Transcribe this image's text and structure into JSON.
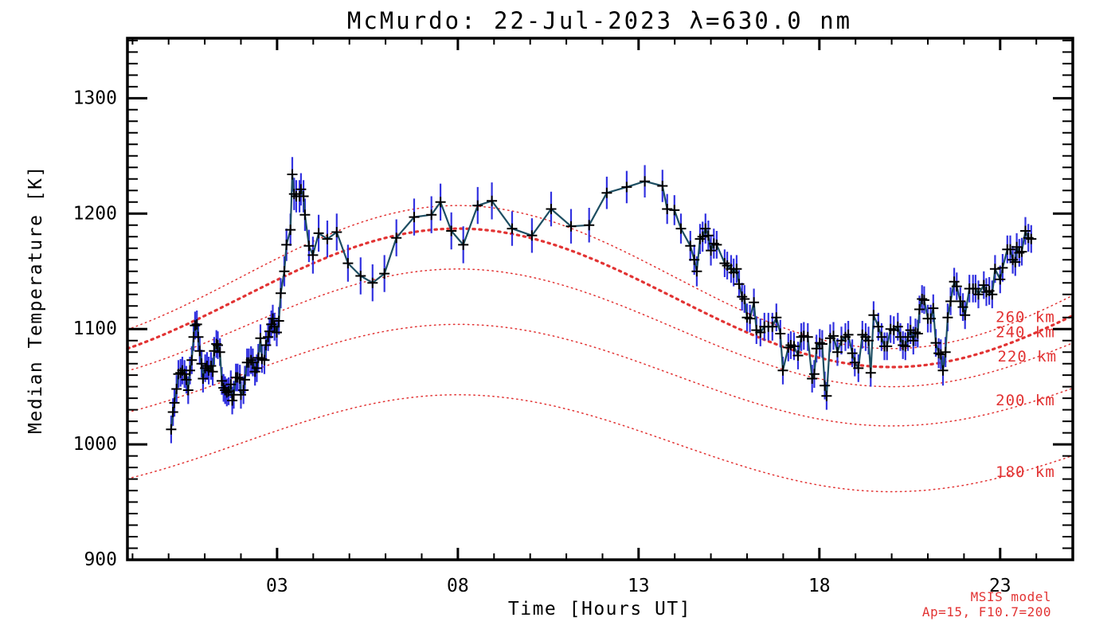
{
  "title": "McMurdo: 22-Jul-2023 λ=630.0 nm",
  "chart_data": {
    "type": "line",
    "title": "McMurdo: 22-Jul-2023 λ=630.0 nm",
    "xlabel": "Time [Hours UT]",
    "ylabel": "Median Temperature [K]",
    "xlim": [
      -1.14,
      25.01
    ],
    "ylim": [
      900,
      1352
    ],
    "grid": false,
    "x_major_ticks": [
      3,
      8,
      13,
      18,
      23
    ],
    "x_major_tick_labels": [
      "03",
      "08",
      "13",
      "18",
      "23"
    ],
    "x_minor_step": 1,
    "y_major_ticks": [
      900,
      1000,
      1100,
      1200,
      1300
    ],
    "y_major_tick_labels": [
      "900",
      "1000",
      "1100",
      "1200",
      "1300"
    ],
    "y_minor_step": 10,
    "colors": {
      "axis": "#000000",
      "model_red": "#e23333",
      "error_bar_blue": "#3232e0",
      "data_line_teal": "#1d4e62",
      "marker_black": "#000000"
    },
    "series": {
      "name": "median temperature with error bars",
      "marker": "plus",
      "line_color": "#1d4e62",
      "marker_color": "#000000",
      "error_bar_color": "#3232e0",
      "points_format": [
        "hours_ut",
        "temperature_k",
        "error_k"
      ],
      "points": [
        [
          0.07,
          1013,
          12
        ],
        [
          0.12,
          1028,
          12
        ],
        [
          0.16,
          1036,
          12
        ],
        [
          0.22,
          1048,
          12
        ],
        [
          0.27,
          1061,
          12
        ],
        [
          0.33,
          1062,
          12
        ],
        [
          0.38,
          1064,
          12
        ],
        [
          0.44,
          1061,
          12
        ],
        [
          0.49,
          1056,
          12
        ],
        [
          0.54,
          1047,
          12
        ],
        [
          0.59,
          1064,
          12
        ],
        [
          0.64,
          1073,
          12
        ],
        [
          0.69,
          1093,
          12
        ],
        [
          0.73,
          1103,
          12
        ],
        [
          0.78,
          1104,
          12
        ],
        [
          0.82,
          1093,
          12
        ],
        [
          0.86,
          1081,
          12
        ],
        [
          0.91,
          1070,
          12
        ],
        [
          0.95,
          1057,
          12
        ],
        [
          1.01,
          1066,
          12
        ],
        [
          1.06,
          1068,
          12
        ],
        [
          1.11,
          1064,
          12
        ],
        [
          1.17,
          1068,
          12
        ],
        [
          1.22,
          1063,
          12
        ],
        [
          1.26,
          1081,
          12
        ],
        [
          1.32,
          1087,
          12
        ],
        [
          1.36,
          1086,
          12
        ],
        [
          1.42,
          1080,
          12
        ],
        [
          1.47,
          1055,
          12
        ],
        [
          1.52,
          1049,
          12
        ],
        [
          1.56,
          1047,
          12
        ],
        [
          1.61,
          1045,
          12
        ],
        [
          1.66,
          1046,
          12
        ],
        [
          1.72,
          1052,
          12
        ],
        [
          1.76,
          1038,
          12
        ],
        [
          1.8,
          1043,
          12
        ],
        [
          1.86,
          1058,
          12
        ],
        [
          1.91,
          1058,
          12
        ],
        [
          1.97,
          1057,
          12
        ],
        [
          2.0,
          1043,
          12
        ],
        [
          2.07,
          1047,
          12
        ],
        [
          2.11,
          1056,
          12
        ],
        [
          2.17,
          1071,
          12
        ],
        [
          2.22,
          1071,
          12
        ],
        [
          2.28,
          1073,
          12
        ],
        [
          2.33,
          1071,
          12
        ],
        [
          2.39,
          1063,
          12
        ],
        [
          2.44,
          1066,
          12
        ],
        [
          2.48,
          1075,
          12
        ],
        [
          2.54,
          1092,
          12
        ],
        [
          2.58,
          1074,
          12
        ],
        [
          2.65,
          1073,
          12
        ],
        [
          2.69,
          1086,
          12
        ],
        [
          2.75,
          1093,
          12
        ],
        [
          2.79,
          1098,
          12
        ],
        [
          2.84,
          1104,
          12
        ],
        [
          2.88,
          1109,
          12
        ],
        [
          2.93,
          1102,
          12
        ],
        [
          2.99,
          1097,
          12
        ],
        [
          3.05,
          1107,
          12
        ],
        [
          3.1,
          1131,
          13
        ],
        [
          3.2,
          1150,
          13
        ],
        [
          3.26,
          1173,
          14
        ],
        [
          3.37,
          1186,
          14
        ],
        [
          3.42,
          1234,
          15
        ],
        [
          3.47,
          1217,
          14
        ],
        [
          3.53,
          1215,
          14
        ],
        [
          3.62,
          1215,
          14
        ],
        [
          3.66,
          1221,
          14
        ],
        [
          3.73,
          1215,
          14
        ],
        [
          3.77,
          1199,
          14
        ],
        [
          3.88,
          1172,
          14
        ],
        [
          3.99,
          1164,
          16
        ],
        [
          4.15,
          1183,
          16
        ],
        [
          4.39,
          1178,
          16
        ],
        [
          4.65,
          1184,
          16
        ],
        [
          4.96,
          1157,
          16
        ],
        [
          5.31,
          1146,
          16
        ],
        [
          5.64,
          1140,
          16
        ],
        [
          5.97,
          1148,
          16
        ],
        [
          6.3,
          1179,
          16
        ],
        [
          6.79,
          1197,
          16
        ],
        [
          7.27,
          1199,
          16
        ],
        [
          7.52,
          1210,
          16
        ],
        [
          7.82,
          1185,
          16
        ],
        [
          8.15,
          1173,
          16
        ],
        [
          8.55,
          1207,
          16
        ],
        [
          8.94,
          1211,
          16
        ],
        [
          9.5,
          1187,
          15
        ],
        [
          10.05,
          1181,
          15
        ],
        [
          10.58,
          1204,
          15
        ],
        [
          11.13,
          1189,
          15
        ],
        [
          11.63,
          1190,
          15
        ],
        [
          12.12,
          1218,
          14
        ],
        [
          12.67,
          1223,
          14
        ],
        [
          13.17,
          1228,
          14
        ],
        [
          13.66,
          1224,
          14
        ],
        [
          13.79,
          1204,
          13
        ],
        [
          13.99,
          1203,
          13
        ],
        [
          14.17,
          1187,
          13
        ],
        [
          14.43,
          1172,
          13
        ],
        [
          14.54,
          1160,
          13
        ],
        [
          14.61,
          1150,
          13
        ],
        [
          14.7,
          1178,
          13
        ],
        [
          14.77,
          1180,
          13
        ],
        [
          14.85,
          1187,
          13
        ],
        [
          14.93,
          1181,
          13
        ],
        [
          15.0,
          1168,
          13
        ],
        [
          15.08,
          1174,
          13
        ],
        [
          15.16,
          1173,
          12
        ],
        [
          15.38,
          1157,
          12
        ],
        [
          15.45,
          1155,
          12
        ],
        [
          15.56,
          1152,
          12
        ],
        [
          15.63,
          1149,
          12
        ],
        [
          15.71,
          1152,
          12
        ],
        [
          15.78,
          1139,
          12
        ],
        [
          15.86,
          1128,
          12
        ],
        [
          15.93,
          1126,
          12
        ],
        [
          16.0,
          1110,
          12
        ],
        [
          16.08,
          1109,
          12
        ],
        [
          16.19,
          1123,
          12
        ],
        [
          16.26,
          1099,
          12
        ],
        [
          16.37,
          1097,
          12
        ],
        [
          16.48,
          1102,
          12
        ],
        [
          16.59,
          1102,
          12
        ],
        [
          16.7,
          1102,
          12
        ],
        [
          16.81,
          1110,
          12
        ],
        [
          16.92,
          1096,
          12
        ],
        [
          16.99,
          1064,
          12
        ],
        [
          17.14,
          1084,
          12
        ],
        [
          17.21,
          1086,
          12
        ],
        [
          17.3,
          1085,
          12
        ],
        [
          17.41,
          1077,
          12
        ],
        [
          17.5,
          1093,
          12
        ],
        [
          17.57,
          1094,
          12
        ],
        [
          17.68,
          1093,
          12
        ],
        [
          17.8,
          1057,
          12
        ],
        [
          17.86,
          1061,
          12
        ],
        [
          17.92,
          1083,
          12
        ],
        [
          18.01,
          1088,
          12
        ],
        [
          18.08,
          1087,
          12
        ],
        [
          18.15,
          1051,
          12
        ],
        [
          18.2,
          1042,
          12
        ],
        [
          18.3,
          1092,
          12
        ],
        [
          18.39,
          1094,
          12
        ],
        [
          18.5,
          1080,
          12
        ],
        [
          18.61,
          1090,
          12
        ],
        [
          18.72,
          1093,
          12
        ],
        [
          18.8,
          1095,
          12
        ],
        [
          18.91,
          1079,
          12
        ],
        [
          18.98,
          1071,
          12
        ],
        [
          19.08,
          1066,
          12
        ],
        [
          19.19,
          1095,
          12
        ],
        [
          19.28,
          1093,
          12
        ],
        [
          19.36,
          1090,
          12
        ],
        [
          19.42,
          1062,
          12
        ],
        [
          19.5,
          1112,
          12
        ],
        [
          19.63,
          1102,
          12
        ],
        [
          19.72,
          1093,
          12
        ],
        [
          19.8,
          1085,
          12
        ],
        [
          19.87,
          1085,
          12
        ],
        [
          19.97,
          1100,
          12
        ],
        [
          20.06,
          1099,
          12
        ],
        [
          20.17,
          1102,
          12
        ],
        [
          20.24,
          1093,
          12
        ],
        [
          20.31,
          1086,
          12
        ],
        [
          20.38,
          1085,
          12
        ],
        [
          20.45,
          1093,
          12
        ],
        [
          20.52,
          1099,
          12
        ],
        [
          20.6,
          1090,
          12
        ],
        [
          20.66,
          1097,
          12
        ],
        [
          20.72,
          1096,
          12
        ],
        [
          20.77,
          1117,
          12
        ],
        [
          20.84,
          1126,
          12
        ],
        [
          20.9,
          1125,
          12
        ],
        [
          21.0,
          1109,
          12
        ],
        [
          21.08,
          1109,
          12
        ],
        [
          21.15,
          1118,
          12
        ],
        [
          21.22,
          1088,
          12
        ],
        [
          21.3,
          1079,
          13
        ],
        [
          21.36,
          1078,
          13
        ],
        [
          21.42,
          1064,
          13
        ],
        [
          21.49,
          1080,
          13
        ],
        [
          21.55,
          1110,
          12
        ],
        [
          21.63,
          1124,
          12
        ],
        [
          21.73,
          1141,
          12
        ],
        [
          21.8,
          1137,
          12
        ],
        [
          21.9,
          1124,
          12
        ],
        [
          21.97,
          1119,
          12
        ],
        [
          22.03,
          1112,
          12
        ],
        [
          22.15,
          1135,
          12
        ],
        [
          22.25,
          1135,
          12
        ],
        [
          22.32,
          1135,
          12
        ],
        [
          22.4,
          1130,
          12
        ],
        [
          22.55,
          1138,
          12
        ],
        [
          22.62,
          1132,
          12
        ],
        [
          22.7,
          1133,
          12
        ],
        [
          22.78,
          1130,
          12
        ],
        [
          22.86,
          1152,
          12
        ],
        [
          23.0,
          1143,
          12
        ],
        [
          23.07,
          1153,
          12
        ],
        [
          23.2,
          1169,
          12
        ],
        [
          23.28,
          1169,
          12
        ],
        [
          23.35,
          1160,
          12
        ],
        [
          23.42,
          1158,
          12
        ],
        [
          23.46,
          1171,
          12
        ],
        [
          23.53,
          1166,
          12
        ],
        [
          23.6,
          1167,
          12
        ],
        [
          23.7,
          1185,
          12
        ],
        [
          23.78,
          1179,
          12
        ],
        [
          23.86,
          1178,
          12
        ]
      ]
    },
    "model_curves": {
      "name": "MSIS model",
      "color": "#e23333",
      "style": "dotted",
      "peak_hour": 8.0,
      "curves": [
        {
          "altitude_km": 260,
          "mean": 1145,
          "amplitude": 62,
          "bold": false,
          "label": "260 km",
          "label_t": 23.7,
          "label_temp": 1110
        },
        {
          "altitude_km": 240,
          "mean": 1127,
          "amplitude": 60,
          "bold": true,
          "label": "240 km",
          "label_t": 23.7,
          "label_temp": 1097
        },
        {
          "altitude_km": 220,
          "mean": 1101,
          "amplitude": 51,
          "bold": false,
          "label": "220 km",
          "label_t": 23.75,
          "label_temp": 1076
        },
        {
          "altitude_km": 200,
          "mean": 1060,
          "amplitude": 44,
          "bold": false,
          "label": "200 km",
          "label_t": 23.7,
          "label_temp": 1038
        },
        {
          "altitude_km": 180,
          "mean": 1001,
          "amplitude": 42,
          "bold": false,
          "label": "180 km",
          "label_t": 23.7,
          "label_temp": 976
        }
      ]
    },
    "annotations": {
      "msis_line1": "MSIS model",
      "msis_line2": "Ap=15, F10.7=200",
      "color": "#e23333"
    },
    "legend": "none"
  }
}
